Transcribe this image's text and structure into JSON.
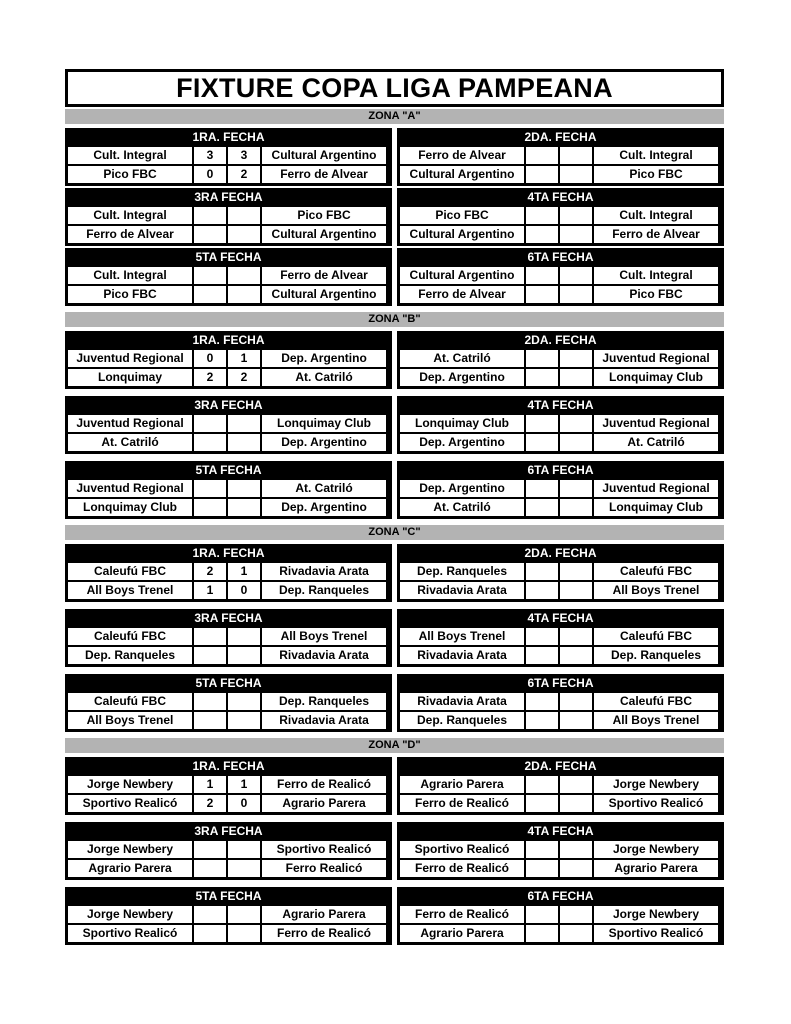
{
  "title": "FIXTURE COPA LIGA PAMPEANA",
  "zones": [
    {
      "name": "ZONA \"A\"",
      "fechas": [
        {
          "title": "1RA. FECHA",
          "matches": [
            {
              "home": "Cult. Integral",
              "hs": "3",
              "as": "3",
              "away": "Cultural Argentino"
            },
            {
              "home": "Pico FBC",
              "hs": "0",
              "as": "2",
              "away": "Ferro de Alvear"
            }
          ]
        },
        {
          "title": "2DA. FECHA",
          "matches": [
            {
              "home": "Ferro de Alvear",
              "hs": "",
              "as": "",
              "away": "Cult. Integral"
            },
            {
              "home": "Cultural Argentino",
              "hs": "",
              "as": "",
              "away": "Pico FBC"
            }
          ]
        },
        {
          "title": "3RA FECHA",
          "matches": [
            {
              "home": "Cult. Integral",
              "hs": "",
              "as": "",
              "away": "Pico FBC"
            },
            {
              "home": "Ferro de Alvear",
              "hs": "",
              "as": "",
              "away": "Cultural Argentino"
            }
          ]
        },
        {
          "title": "4TA FECHA",
          "matches": [
            {
              "home": "Pico FBC",
              "hs": "",
              "as": "",
              "away": "Cult. Integral"
            },
            {
              "home": "Cultural Argentino",
              "hs": "",
              "as": "",
              "away": "Ferro de Alvear"
            }
          ]
        },
        {
          "title": "5TA FECHA",
          "matches": [
            {
              "home": "Cult. Integral",
              "hs": "",
              "as": "",
              "away": "Ferro de Alvear"
            },
            {
              "home": "Pico FBC",
              "hs": "",
              "as": "",
              "away": "Cultural Argentino"
            }
          ]
        },
        {
          "title": "6TA FECHA",
          "matches": [
            {
              "home": "Cultural Argentino",
              "hs": "",
              "as": "",
              "away": "Cult. Integral"
            },
            {
              "home": "Ferro de Alvear",
              "hs": "",
              "as": "",
              "away": "Pico FBC"
            }
          ]
        }
      ]
    },
    {
      "name": "ZONA \"B\"",
      "fechas": [
        {
          "title": "1RA. FECHA",
          "matches": [
            {
              "home": "Juventud Regional",
              "hs": "0",
              "as": "1",
              "away": "Dep. Argentino"
            },
            {
              "home": "Lonquimay",
              "hs": "2",
              "as": "2",
              "away": "At. Catriló"
            }
          ]
        },
        {
          "title": "2DA. FECHA",
          "matches": [
            {
              "home": "At. Catriló",
              "hs": "",
              "as": "",
              "away": "Juventud Regional"
            },
            {
              "home": "Dep. Argentino",
              "hs": "",
              "as": "",
              "away": "Lonquimay Club"
            }
          ]
        },
        {
          "title": "3RA FECHA",
          "matches": [
            {
              "home": "Juventud Regional",
              "hs": "",
              "as": "",
              "away": "Lonquimay Club"
            },
            {
              "home": "At. Catriló",
              "hs": "",
              "as": "",
              "away": "Dep. Argentino"
            }
          ]
        },
        {
          "title": "4TA FECHA",
          "matches": [
            {
              "home": "Lonquimay Club",
              "hs": "",
              "as": "",
              "away": "Juventud Regional"
            },
            {
              "home": "Dep. Argentino",
              "hs": "",
              "as": "",
              "away": "At. Catriló"
            }
          ]
        },
        {
          "title": "5TA FECHA",
          "matches": [
            {
              "home": "Juventud Regional",
              "hs": "",
              "as": "",
              "away": "At. Catriló"
            },
            {
              "home": "Lonquimay Club",
              "hs": "",
              "as": "",
              "away": "Dep. Argentino"
            }
          ]
        },
        {
          "title": "6TA FECHA",
          "matches": [
            {
              "home": "Dep. Argentino",
              "hs": "",
              "as": "",
              "away": "Juventud Regional"
            },
            {
              "home": "At. Catriló",
              "hs": "",
              "as": "",
              "away": "Lonquimay Club"
            }
          ]
        }
      ]
    },
    {
      "name": "ZONA \"C\"",
      "fechas": [
        {
          "title": "1RA. FECHA",
          "matches": [
            {
              "home": "Caleufú FBC",
              "hs": "2",
              "as": "1",
              "away": "Rivadavia Arata"
            },
            {
              "home": "All Boys Trenel",
              "hs": "1",
              "as": "0",
              "away": "Dep. Ranqueles"
            }
          ]
        },
        {
          "title": "2DA. FECHA",
          "matches": [
            {
              "home": "Dep. Ranqueles",
              "hs": "",
              "as": "",
              "away": "Caleufú FBC"
            },
            {
              "home": "Rivadavia Arata",
              "hs": "",
              "as": "",
              "away": "All Boys Trenel"
            }
          ]
        },
        {
          "title": "3RA FECHA",
          "matches": [
            {
              "home": "Caleufú FBC",
              "hs": "",
              "as": "",
              "away": "All Boys Trenel"
            },
            {
              "home": "Dep. Ranqueles",
              "hs": "",
              "as": "",
              "away": "Rivadavia Arata"
            }
          ]
        },
        {
          "title": "4TA FECHA",
          "matches": [
            {
              "home": "All Boys Trenel",
              "hs": "",
              "as": "",
              "away": "Caleufú FBC"
            },
            {
              "home": "Rivadavia Arata",
              "hs": "",
              "as": "",
              "away": "Dep. Ranqueles"
            }
          ]
        },
        {
          "title": "5TA FECHA",
          "matches": [
            {
              "home": "Caleufú FBC",
              "hs": "",
              "as": "",
              "away": "Dep. Ranqueles"
            },
            {
              "home": "All Boys Trenel",
              "hs": "",
              "as": "",
              "away": "Rivadavia Arata"
            }
          ]
        },
        {
          "title": "6TA FECHA",
          "matches": [
            {
              "home": "Rivadavia Arata",
              "hs": "",
              "as": "",
              "away": "Caleufú FBC"
            },
            {
              "home": "Dep. Ranqueles",
              "hs": "",
              "as": "",
              "away": "All Boys Trenel"
            }
          ]
        }
      ]
    },
    {
      "name": "ZONA \"D\"",
      "fechas": [
        {
          "title": "1RA. FECHA",
          "matches": [
            {
              "home": "Jorge Newbery",
              "hs": "1",
              "as": "1",
              "away": "Ferro de Realicó"
            },
            {
              "home": "Sportivo Realicó",
              "hs": "2",
              "as": "0",
              "away": "Agrario Parera"
            }
          ]
        },
        {
          "title": "2DA. FECHA",
          "matches": [
            {
              "home": "Agrario Parera",
              "hs": "",
              "as": "",
              "away": "Jorge Newbery"
            },
            {
              "home": "Ferro de Realicó",
              "hs": "",
              "as": "",
              "away": "Sportivo Realicó"
            }
          ]
        },
        {
          "title": "3RA FECHA",
          "matches": [
            {
              "home": "Jorge Newbery",
              "hs": "",
              "as": "",
              "away": "Sportivo Realicó"
            },
            {
              "home": "Agrario Parera",
              "hs": "",
              "as": "",
              "away": "Ferro Realicó"
            }
          ]
        },
        {
          "title": "4TA FECHA",
          "matches": [
            {
              "home": "Sportivo Realicó",
              "hs": "",
              "as": "",
              "away": "Jorge Newbery"
            },
            {
              "home": "Ferro de Realicó",
              "hs": "",
              "as": "",
              "away": "Agrario Parera"
            }
          ]
        },
        {
          "title": "5TA FECHA",
          "matches": [
            {
              "home": "Jorge Newbery",
              "hs": "",
              "as": "",
              "away": "Agrario Parera"
            },
            {
              "home": "Sportivo Realicó",
              "hs": "",
              "as": "",
              "away": "Ferro de Realicó"
            }
          ]
        },
        {
          "title": "6TA FECHA",
          "matches": [
            {
              "home": "Ferro de Realicó",
              "hs": "",
              "as": "",
              "away": "Jorge Newbery"
            },
            {
              "home": "Agrario Parera",
              "hs": "",
              "as": "",
              "away": "Sportivo Realicó"
            }
          ]
        }
      ]
    }
  ]
}
